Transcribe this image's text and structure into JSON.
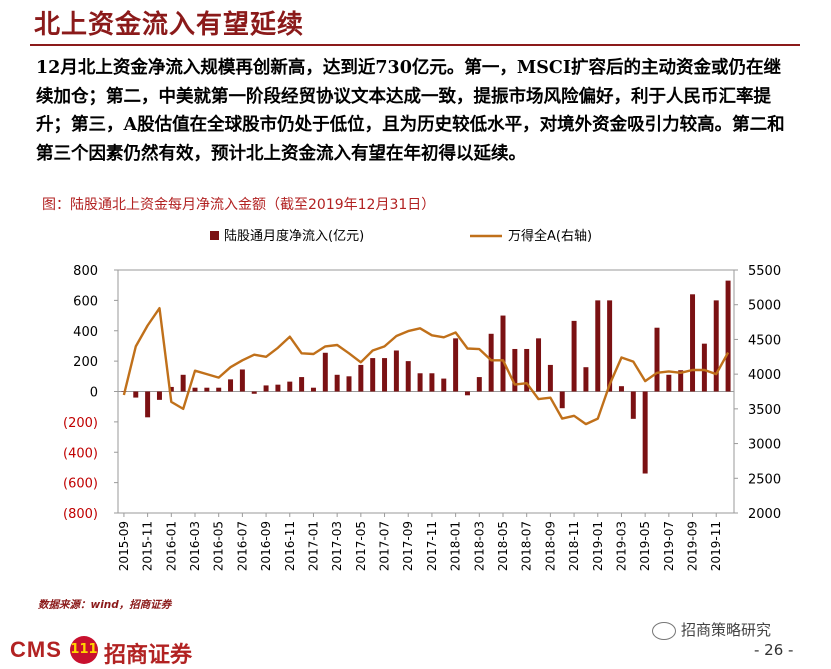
{
  "slide": {
    "title": "北上资金流入有望延续",
    "body": "12月北上资金净流入规模再创新高，达到近730亿元。第一，MSCI扩容后的主动资金或仍在继续加仓；第二，中美就第一阶段经贸协议文本达成一致，提振市场风险偏好，利于人民币汇率提升；第三，A股估值在全球股市仍处于低位，且为历史较低水平，对境外资金吸引力较高。第二和第三个因素仍然有效，预计北上资金流入有望在年初得以延续。",
    "chart_caption": "图：陆股通北上资金每月净流入金额（截至2019年12月31日）",
    "source": "数据来源：wind，招商证券",
    "page_number": "- 26 -",
    "logo_cms": "CMS",
    "logo_mark": "111",
    "logo_name": "招商证券",
    "wechat_label": "招商策略研究"
  },
  "colors": {
    "bar": "#7b1113",
    "line": "#c0701a",
    "title": "#8b1a1a",
    "caption": "#b22222"
  },
  "chart_data": {
    "type": "bar+line",
    "legend": [
      "陆股通月度净流入(亿元)",
      "万得全A(右轴)"
    ],
    "legend_position": "top",
    "grid": false,
    "y_left": {
      "min": -800,
      "max": 800,
      "step": 200,
      "tick_labels": [
        "(800)",
        "(600)",
        "(400)",
        "(200)",
        "0",
        "200",
        "400",
        "600",
        "800"
      ]
    },
    "y_right": {
      "min": 2000,
      "max": 5500,
      "step": 500,
      "tick_labels": [
        "2000",
        "2500",
        "3000",
        "3500",
        "4000",
        "4500",
        "5000",
        "5500"
      ]
    },
    "x_tick_labels": [
      "2015-09",
      "2015-11",
      "2016-01",
      "2016-03",
      "2016-05",
      "2016-07",
      "2016-09",
      "2016-11",
      "2017-01",
      "2017-03",
      "2017-05",
      "2017-07",
      "2017-09",
      "2017-11",
      "2018-01",
      "2018-03",
      "2018-05",
      "2018-07",
      "2018-09",
      "2018-11",
      "2019-01",
      "2019-03",
      "2019-05",
      "2019-07",
      "2019-09",
      "2019-11"
    ],
    "months": [
      "2015-09",
      "2015-10",
      "2015-11",
      "2015-12",
      "2016-01",
      "2016-02",
      "2016-03",
      "2016-04",
      "2016-05",
      "2016-06",
      "2016-07",
      "2016-08",
      "2016-09",
      "2016-10",
      "2016-11",
      "2016-12",
      "2017-01",
      "2017-02",
      "2017-03",
      "2017-04",
      "2017-05",
      "2017-06",
      "2017-07",
      "2017-08",
      "2017-09",
      "2017-10",
      "2017-11",
      "2017-12",
      "2018-01",
      "2018-02",
      "2018-03",
      "2018-04",
      "2018-05",
      "2018-06",
      "2018-07",
      "2018-08",
      "2018-09",
      "2018-10",
      "2018-11",
      "2018-12",
      "2019-01",
      "2019-02",
      "2019-03",
      "2019-04",
      "2019-05",
      "2019-06",
      "2019-07",
      "2019-08",
      "2019-09",
      "2019-10",
      "2019-11",
      "2019-12"
    ],
    "series": [
      {
        "name": "陆股通月度净流入(亿元)",
        "type": "bar",
        "axis": "left",
        "values": [
          0,
          -40,
          -170,
          -55,
          30,
          110,
          25,
          25,
          25,
          80,
          145,
          -15,
          40,
          45,
          65,
          95,
          25,
          255,
          110,
          100,
          175,
          220,
          220,
          270,
          200,
          120,
          120,
          85,
          350,
          -25,
          95,
          380,
          500,
          280,
          280,
          350,
          175,
          -110,
          465,
          160,
          600,
          600,
          35,
          -180,
          -540,
          420,
          110,
          140,
          640,
          315,
          600,
          730
        ]
      },
      {
        "name": "万得全A(右轴)",
        "type": "line",
        "axis": "right",
        "values": [
          3700,
          4400,
          4700,
          4950,
          3600,
          3500,
          4050,
          4000,
          3950,
          4100,
          4200,
          4280,
          4250,
          4380,
          4540,
          4300,
          4290,
          4400,
          4420,
          4300,
          4170,
          4340,
          4400,
          4550,
          4620,
          4660,
          4560,
          4530,
          4600,
          4370,
          4360,
          4200,
          4200,
          3850,
          3870,
          3640,
          3660,
          3360,
          3400,
          3280,
          3360,
          3850,
          4240,
          4180,
          3900,
          4020,
          4040,
          4020,
          4060,
          4060,
          4000,
          4310
        ]
      }
    ]
  }
}
